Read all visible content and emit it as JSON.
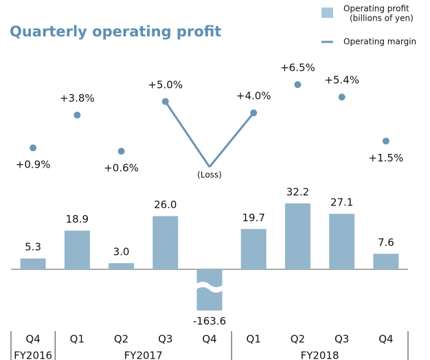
{
  "chart_data": {
    "type": "bar_line",
    "title": "Quarterly operating profit",
    "categories": [
      "Q4",
      "Q1",
      "Q2",
      "Q3",
      "Q4",
      "Q1",
      "Q2",
      "Q3",
      "Q4"
    ],
    "fiscal_years": [
      {
        "label": "FY2016",
        "span": 1
      },
      {
        "label": "FY2017",
        "span": 4
      },
      {
        "label": "FY2018",
        "span": 4
      }
    ],
    "series": [
      {
        "name": "Operating profit",
        "name_note": "(billions of yen)",
        "color": "#94b6cc",
        "values": [
          5.3,
          18.9,
          3.0,
          26.0,
          -163.6,
          19.7,
          32.2,
          27.1,
          7.6
        ],
        "value_labels": [
          "5.3",
          "18.9",
          "3.0",
          "26.0",
          "-163.6",
          "19.7",
          "32.2",
          "27.1",
          "7.6"
        ]
      },
      {
        "name": "Operating margin",
        "color": "#6b96b3",
        "values": [
          0.9,
          3.8,
          0.6,
          5.0,
          null,
          4.0,
          6.5,
          5.4,
          1.5
        ],
        "value_labels": [
          "+0.9%",
          "+3.8%",
          "+0.6%",
          "+5.0%",
          "(Loss)",
          "+4.0%",
          "+6.5%",
          "+5.4%",
          "+1.5%"
        ]
      }
    ]
  }
}
